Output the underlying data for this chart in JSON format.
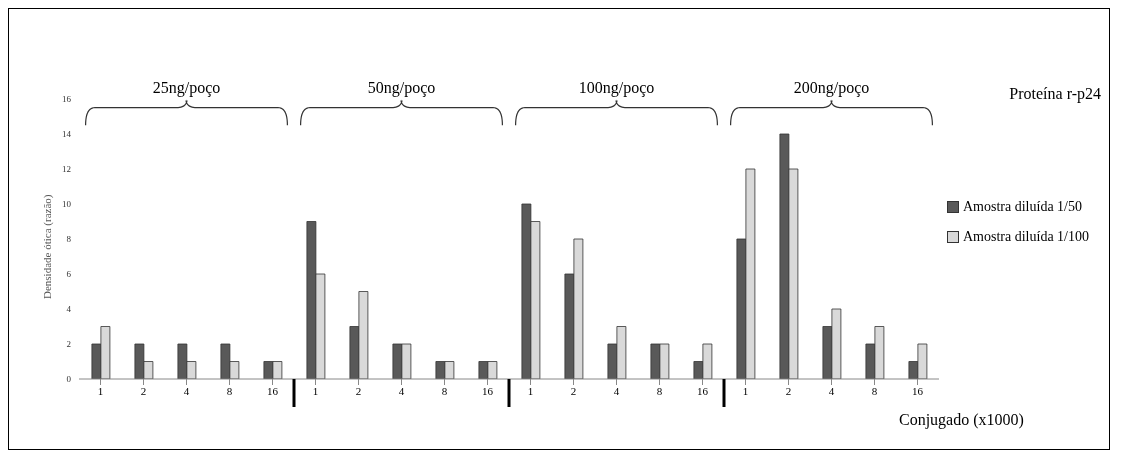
{
  "chart_data": {
    "type": "bar",
    "ylabel": "Densidade  ótica (razão)",
    "xlabel": "Conjugado (x1000)",
    "categories": [
      "1",
      "2",
      "4",
      "8",
      "16",
      "1",
      "2",
      "4",
      "8",
      "16",
      "1",
      "2",
      "4",
      "8",
      "16",
      "1",
      "2",
      "4",
      "8",
      "16"
    ],
    "series": [
      {
        "name": "Amostra diluída 1/50",
        "color": "#595959",
        "values": [
          2,
          2,
          2,
          2,
          1,
          9,
          3,
          2,
          1,
          1,
          10,
          6,
          2,
          2,
          1,
          8,
          14,
          3,
          2,
          1
        ]
      },
      {
        "name": "Amostra diluída 1/100",
        "color": "#d9d9d9",
        "values": [
          3,
          1,
          1,
          1,
          1,
          6,
          5,
          2,
          1,
          1,
          9,
          8,
          3,
          2,
          2,
          12,
          12,
          4,
          3,
          2
        ]
      }
    ],
    "ylim": [
      0,
      16
    ],
    "yticks": [
      0,
      2,
      4,
      6,
      8,
      10,
      12,
      14,
      16
    ],
    "grid": false,
    "legend": "right",
    "annotations": [
      "25ng/poço",
      "50ng/poço",
      "100ng/poço",
      "200ng/poço",
      "Proteína r-p24"
    ]
  }
}
